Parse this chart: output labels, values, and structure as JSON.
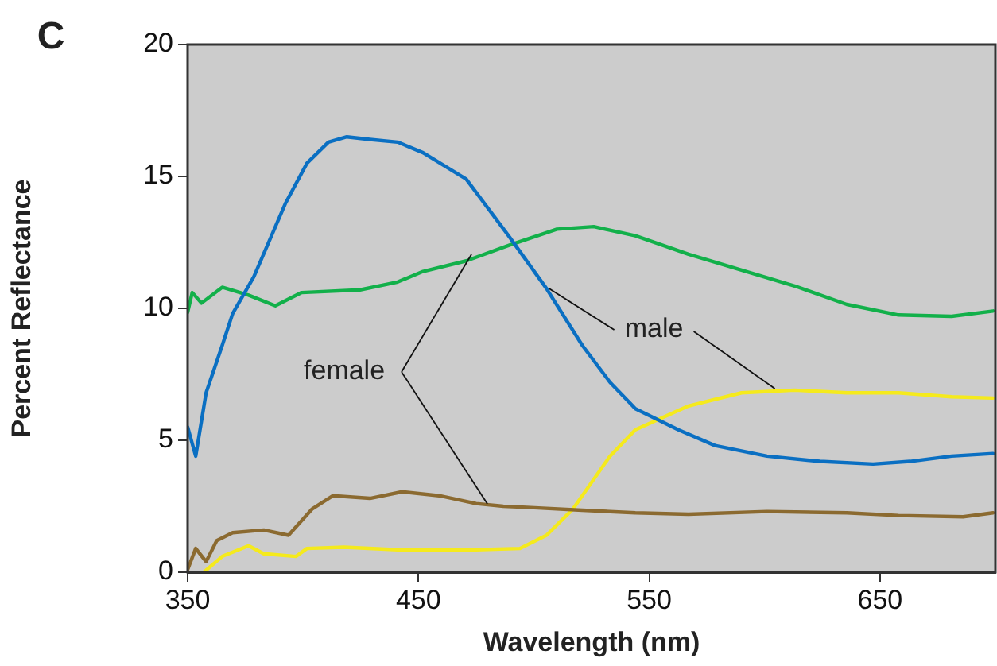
{
  "chart_data": {
    "type": "line",
    "xlabel": "Wavelength (nm)",
    "ylabel": "Percent Reflectance",
    "xlim": [
      350,
      700
    ],
    "xticks": [
      350,
      450,
      550,
      650
    ],
    "ylim": [
      0,
      20
    ],
    "yticks": [
      0,
      5,
      10,
      15,
      20
    ],
    "legend": false,
    "marker": "none",
    "line_style": "solid",
    "annotations": [
      "C",
      {
        "text": "female",
        "x": 473,
        "y": 12.05
      },
      {
        "text": "male",
        "x": 506.6,
        "y": 10.75
      }
    ],
    "series": [
      {
        "color": "#0a6fc2",
        "x": [
          350,
          353.5,
          358,
          365,
          369.5,
          378.7,
          392.5,
          401.7,
          411,
          419,
          429,
          441,
          452,
          470.7,
          489.5,
          505.5,
          521,
          533,
          544,
          562.6,
          578.5,
          601,
          624,
          647,
          663,
          681,
          699
        ],
        "values": [
          5.5,
          4.4,
          6.8,
          8.6,
          9.8,
          11.2,
          14.0,
          15.5,
          16.3,
          16.5,
          16.4,
          16.3,
          15.9,
          14.9,
          12.7,
          10.75,
          8.6,
          7.2,
          6.2,
          5.4,
          4.8,
          4.4,
          4.2,
          4.1,
          4.2,
          4.4,
          4.5
        ]
      },
      {
        "color": "#12b04a",
        "x": [
          350,
          352,
          356,
          365,
          376.4,
          388,
          399.4,
          424.7,
          441,
          452,
          470.7,
          489.5,
          510,
          526,
          544,
          567,
          590,
          613,
          635.6,
          658,
          681,
          699
        ],
        "values": [
          9.85,
          10.6,
          10.2,
          10.8,
          10.5,
          10.1,
          10.6,
          10.7,
          11.0,
          11.4,
          11.8,
          12.4,
          13.0,
          13.1,
          12.75,
          12.05,
          11.45,
          10.85,
          10.15,
          9.75,
          9.7,
          9.9
        ]
      },
      {
        "color": "#8b6a30",
        "x": [
          350,
          353.5,
          358,
          362.6,
          369.5,
          383,
          393.7,
          404,
          413,
          429,
          443,
          459,
          475,
          486.8,
          498.6,
          521,
          544,
          567,
          601,
          635.6,
          658,
          686,
          699
        ],
        "values": [
          0.1,
          0.9,
          0.4,
          1.2,
          1.5,
          1.6,
          1.4,
          2.4,
          2.9,
          2.8,
          3.05,
          2.9,
          2.6,
          2.5,
          2.45,
          2.35,
          2.25,
          2.2,
          2.3,
          2.25,
          2.15,
          2.1,
          2.25
        ]
      },
      {
        "color": "#f5ea1c",
        "x": [
          357,
          365,
          376.4,
          383,
          397,
          401.7,
          417.8,
          441,
          475,
          494,
          505.5,
          517,
          533,
          544,
          567,
          590,
          613,
          635.6,
          658,
          681,
          699
        ],
        "values": [
          0,
          0.6,
          1.0,
          0.7,
          0.6,
          0.9,
          0.95,
          0.85,
          0.85,
          0.9,
          1.4,
          2.4,
          4.4,
          5.4,
          6.3,
          6.8,
          6.9,
          6.8,
          6.8,
          6.65,
          6.6
        ]
      }
    ]
  }
}
